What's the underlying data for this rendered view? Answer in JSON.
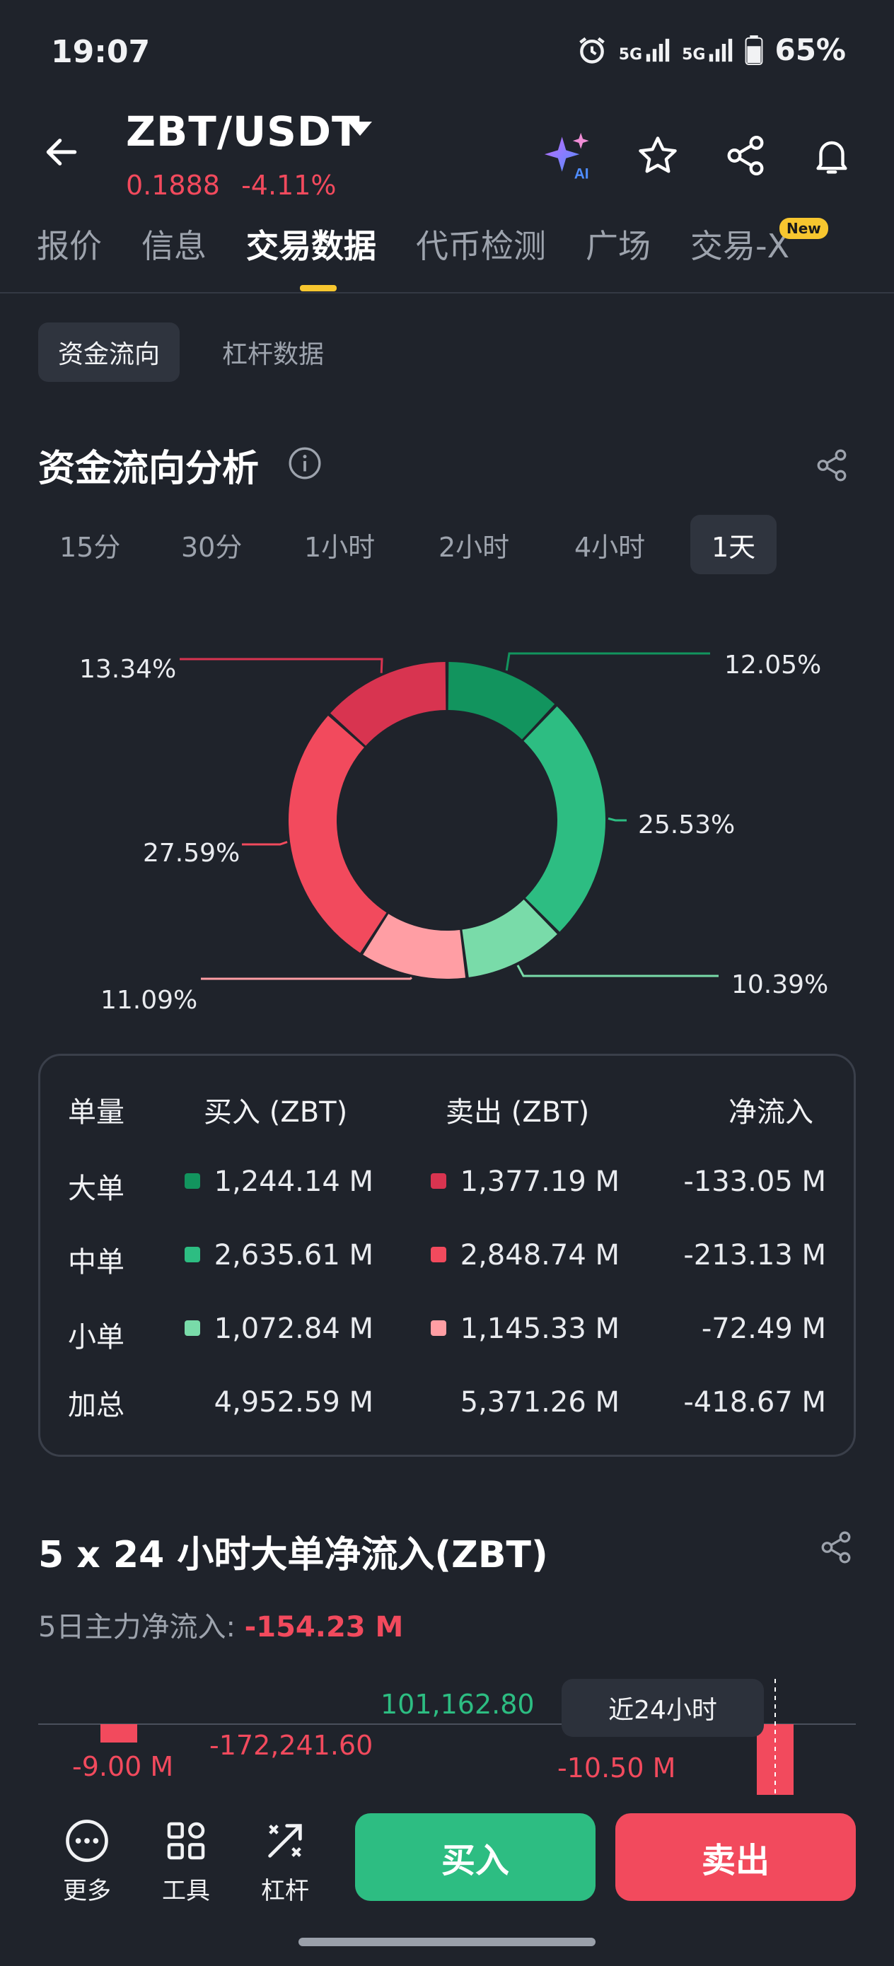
{
  "status_bar": {
    "time": "19:07",
    "network1": "5G",
    "network2": "5G",
    "battery": "65%"
  },
  "header": {
    "pair": "ZBT/USDT",
    "price": "0.1888",
    "change": "-4.11%",
    "ai_label": "AI",
    "icons": [
      "back-arrow-icon",
      "ai-sparkle-icon",
      "star-icon",
      "share-icon",
      "bell-icon"
    ]
  },
  "tabs": {
    "items": [
      "报价",
      "信息",
      "交易数据",
      "代币检测",
      "广场",
      "交易-X"
    ],
    "active_index": 2,
    "new_badge": "New"
  },
  "subtabs": {
    "items": [
      "资金流向",
      "杠杆数据"
    ],
    "active_index": 0
  },
  "flow_section": {
    "title": "资金流向分析",
    "timeframes": [
      "15分",
      "30分",
      "1小时",
      "2小时",
      "4小时",
      "1天"
    ],
    "active_timeframe": "1天"
  },
  "chart_data": {
    "type": "pie",
    "donut": true,
    "labels": [
      "12.05%",
      "25.53%",
      "10.39%",
      "11.09%",
      "27.59%",
      "13.34%"
    ],
    "values": [
      12.05,
      25.53,
      10.39,
      11.09,
      27.59,
      13.34
    ],
    "colors": [
      "#12945e",
      "#2dbd82",
      "#79dba9",
      "#ff9ea4",
      "#f24a5d",
      "#d83450"
    ]
  },
  "flow_table": {
    "headers": [
      "单量",
      "买入 (ZBT)",
      "卖出 (ZBT)",
      "净流入"
    ],
    "rows": [
      {
        "label": "大单",
        "buy": "1,244.14 M",
        "sell": "1,377.19 M",
        "net": "-133.05 M",
        "buy_color": "#12945e",
        "sell_color": "#d83450"
      },
      {
        "label": "中单",
        "buy": "2,635.61 M",
        "sell": "2,848.74 M",
        "net": "-213.13 M",
        "buy_color": "#2dbd82",
        "sell_color": "#f24a5d"
      },
      {
        "label": "小单",
        "buy": "1,072.84 M",
        "sell": "1,145.33 M",
        "net": "-72.49 M",
        "buy_color": "#79dba9",
        "sell_color": "#ff9ea4"
      }
    ],
    "total": {
      "label": "加总",
      "buy": "4,952.59 M",
      "sell": "5,371.26 M",
      "net": "-418.67 M"
    }
  },
  "big_order_section": {
    "title": "5 x 24 小时大单净流入(ZBT)",
    "subtitle_label": "5日主力净流入:",
    "subtitle_value": "-154.23 M",
    "bar_labels": [
      "-9.00 M",
      "-172,241.60",
      "101,162.80",
      "-10.50 M"
    ],
    "tag": "近24小时"
  },
  "bottom_bar": {
    "tools": [
      {
        "label": "更多",
        "icon": "more-icon"
      },
      {
        "label": "工具",
        "icon": "tools-icon"
      },
      {
        "label": "杠杆",
        "icon": "leverage-icon"
      }
    ],
    "buy": "买入",
    "sell": "卖出"
  }
}
